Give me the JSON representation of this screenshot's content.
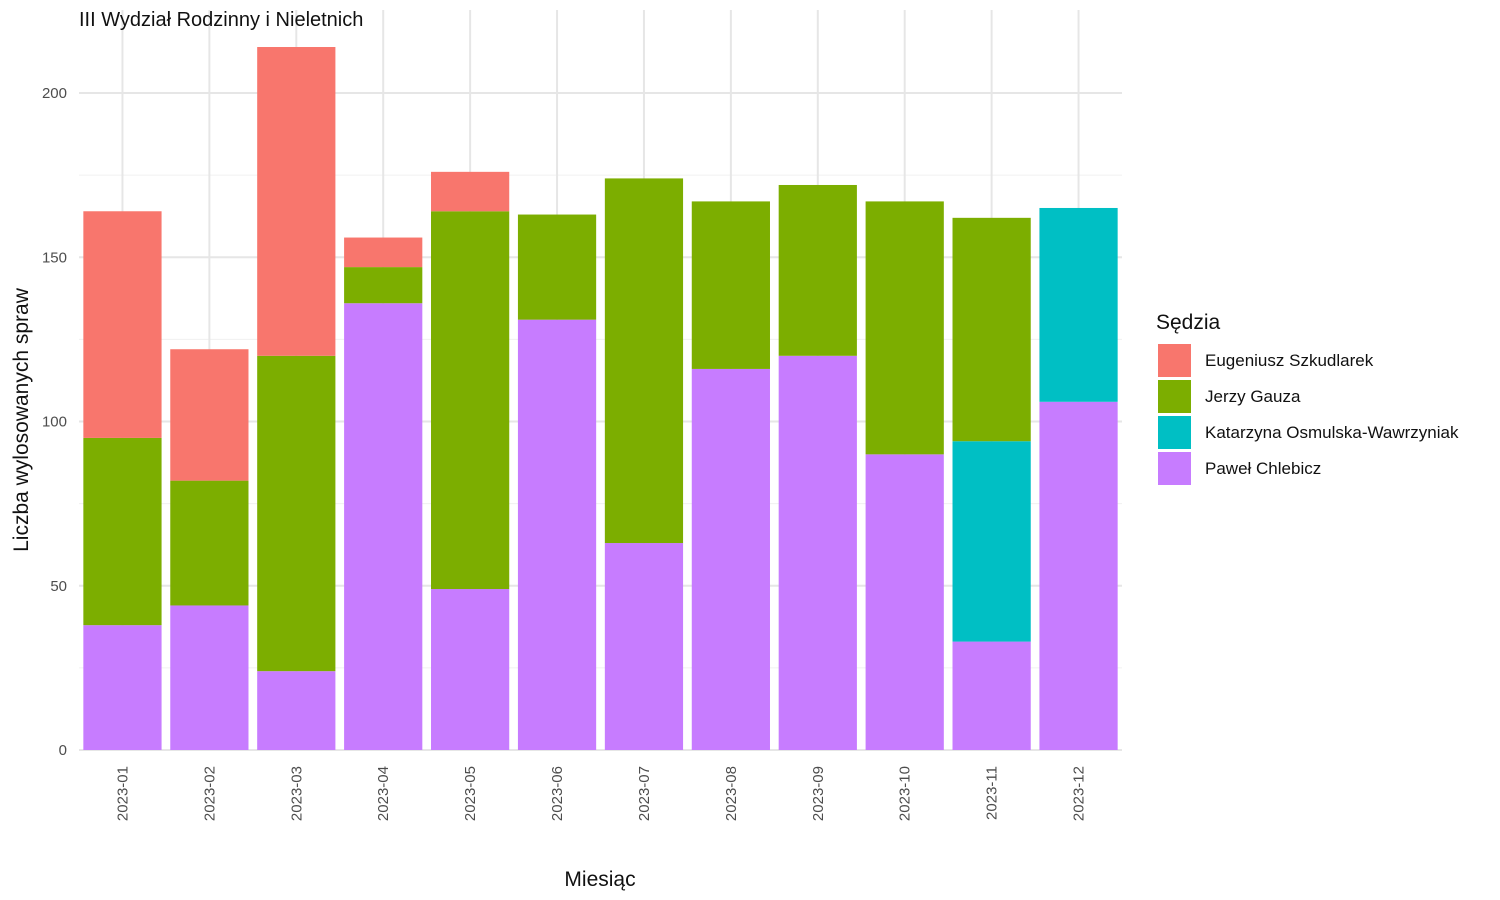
{
  "chart_data": {
    "type": "bar",
    "stacked": true,
    "title": "III Wydział Rodzinny i Nieletnich",
    "xlabel": "Miesiąc",
    "ylabel": "Liczba wylosowanych spraw",
    "ylim": [
      0,
      215
    ],
    "yticks": [
      "0",
      "50",
      "100",
      "150",
      "200"
    ],
    "grid": true,
    "legend_position": "right",
    "legend_title": "Sędzia",
    "categories": [
      "2023-01",
      "2023-02",
      "2023-03",
      "2023-04",
      "2023-05",
      "2023-06",
      "2023-07",
      "2023-08",
      "2023-09",
      "2023-10",
      "2023-11",
      "2023-12"
    ],
    "series": [
      {
        "name": "Paweł Chlebicz",
        "color": "#C77CFF",
        "values": [
          38,
          44,
          24,
          136,
          49,
          131,
          63,
          116,
          120,
          90,
          33,
          106
        ]
      },
      {
        "name": "Katarzyna Osmulska-Wawrzyniak",
        "color": "#00BFC4",
        "values": [
          0,
          0,
          0,
          0,
          0,
          0,
          0,
          0,
          0,
          0,
          61,
          59
        ]
      },
      {
        "name": "Jerzy Gauza",
        "color": "#7CAE00",
        "values": [
          57,
          38,
          96,
          11,
          115,
          32,
          111,
          51,
          52,
          77,
          68,
          0
        ]
      },
      {
        "name": "Eugeniusz Szkudlarek",
        "color": "#F8766D",
        "values": [
          69,
          40,
          94,
          9,
          12,
          0,
          0,
          0,
          0,
          0,
          0,
          0
        ]
      }
    ],
    "legend_order": [
      "Eugeniusz Szkudlarek",
      "Jerzy Gauza",
      "Katarzyna Osmulska-Wawrzyniak",
      "Paweł Chlebicz"
    ]
  }
}
